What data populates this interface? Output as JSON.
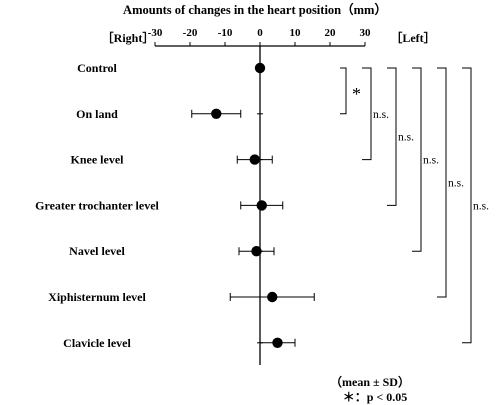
{
  "chart_data": {
    "type": "scatter",
    "title": "Amounts of changes in the heart position（mm）",
    "direction_labels": {
      "left": "［Right］",
      "right": "［Left］"
    },
    "xlim": [
      -30,
      30
    ],
    "xticks": [
      "-30",
      "-20",
      "-10",
      "0",
      "10",
      "20",
      "30"
    ],
    "error_bars": "mean ± SD",
    "categories": [
      "Control",
      "On land",
      "Knee level",
      "Greater trochanter level",
      "Navel level",
      "Xiphisternum level",
      "Clavicle level"
    ],
    "means": [
      0,
      -12.5,
      -1.5,
      0.5,
      -1,
      3.5,
      5
    ],
    "sd": [
      0,
      7,
      5,
      6,
      5,
      12,
      5
    ],
    "comparisons": [
      {
        "from": "Control",
        "to": "On land",
        "label": "*"
      },
      {
        "from": "Control",
        "to": "Knee level",
        "label": "n.s."
      },
      {
        "from": "Control",
        "to": "Greater trochanter level",
        "label": "n.s."
      },
      {
        "from": "Control",
        "to": "Navel level",
        "label": "n.s."
      },
      {
        "from": "Control",
        "to": "Xiphisternum level",
        "label": "n.s."
      },
      {
        "from": "Control",
        "to": "Clavicle level",
        "label": "n.s."
      }
    ],
    "footnotes": [
      "（mean ± SD）",
      "＊：p < 0.05"
    ]
  }
}
